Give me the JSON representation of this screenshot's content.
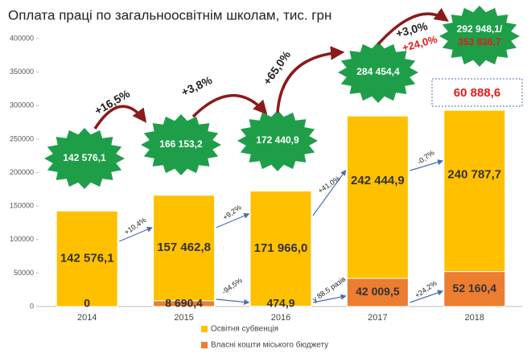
{
  "chart_data": {
    "type": "stacked_bar",
    "title": "Оплата праці по загальноосвітнім школам, тис. грн",
    "categories": [
      "2014",
      "2015",
      "2016",
      "2017",
      "2018"
    ],
    "series": [
      {
        "name": "Освітня субвенція",
        "color": "#ffc000",
        "values": [
          142576.1,
          157462.8,
          171966.0,
          242444.9,
          240787.7
        ],
        "value_labels": [
          "142 576,1",
          "157 462,8",
          "171 966,0",
          "242 444,9",
          "240 787,7"
        ]
      },
      {
        "name": "Власні кошти міського бюджету",
        "color": "#ed7d31",
        "values": [
          0,
          8690.4,
          474.9,
          42009.5,
          52160.4
        ],
        "value_labels": [
          "0",
          "8 690,4",
          "474,9",
          "42 009,5",
          "52 160,4"
        ]
      }
    ],
    "ylim": [
      0,
      400000
    ],
    "yticks": [
      0,
      50000,
      100000,
      150000,
      200000,
      250000,
      300000,
      350000,
      400000
    ],
    "grid": false,
    "legend": "bottom",
    "annotations": {
      "totals": [
        "142 576,1",
        "166 153,2",
        "172 440,9",
        "284 454,4",
        "292 948,1/"
      ],
      "total_extra": "353 836,7",
      "difference": "60 888,6",
      "growth_total": [
        "+16,5%",
        "+3,8%",
        "+65,0%",
        "+3,0%"
      ],
      "growth_total_extra": "+24,0%",
      "growth_subsidy": [
        "+10,4%",
        "+9,2%",
        "+41,0%",
        "-0,7%"
      ],
      "growth_own": [
        "-94,5%",
        "у 88,5 разів",
        "+24,2%"
      ],
      "star_color": "#1f9e4a",
      "arrow_color": "#8b1a1a",
      "accent_color": "#e31b1b"
    }
  }
}
